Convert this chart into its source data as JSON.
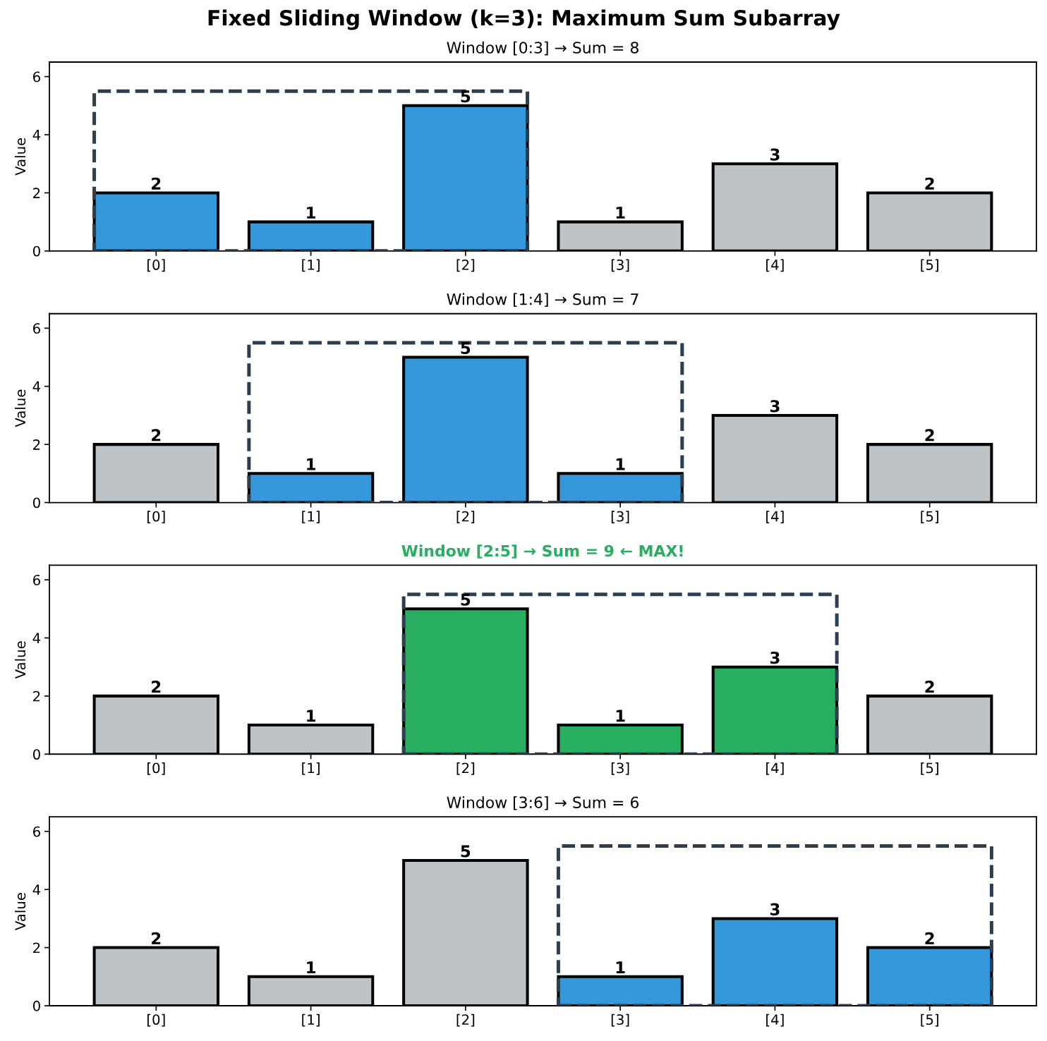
{
  "chart_data": [
    {
      "type": "other",
      "title": "Fixed Sliding Window (k=3): Maximum Sum Subarray"
    },
    {
      "type": "bar",
      "title": "Window [0:3] → Sum = 8",
      "ylabel": "Value",
      "categories": [
        "[0]",
        "[1]",
        "[2]",
        "[3]",
        "[4]",
        "[5]"
      ],
      "values": [
        2,
        1,
        5,
        1,
        3,
        2
      ],
      "colors": [
        "#3498db",
        "#3498db",
        "#3498db",
        "#bdc3c7",
        "#bdc3c7",
        "#bdc3c7"
      ],
      "ylim": [
        0,
        6.5
      ],
      "yticks": [
        0,
        2,
        4,
        6
      ],
      "data_labels": true
    },
    {
      "type": "bar",
      "title": "Window [1:4] → Sum = 7",
      "ylabel": "Value",
      "categories": [
        "[0]",
        "[1]",
        "[2]",
        "[3]",
        "[4]",
        "[5]"
      ],
      "values": [
        2,
        1,
        5,
        1,
        3,
        2
      ],
      "colors": [
        "#bdc3c7",
        "#3498db",
        "#3498db",
        "#3498db",
        "#bdc3c7",
        "#bdc3c7"
      ],
      "ylim": [
        0,
        6.5
      ],
      "yticks": [
        0,
        2,
        4,
        6
      ],
      "data_labels": true
    },
    {
      "type": "bar",
      "title": "Window [2:5] → Sum = 9 ← MAX!",
      "ylabel": "Value",
      "categories": [
        "[0]",
        "[1]",
        "[2]",
        "[3]",
        "[4]",
        "[5]"
      ],
      "values": [
        2,
        1,
        5,
        1,
        3,
        2
      ],
      "colors": [
        "#bdc3c7",
        "#bdc3c7",
        "#27ae60",
        "#27ae60",
        "#27ae60",
        "#bdc3c7"
      ],
      "ylim": [
        0,
        6.5
      ],
      "yticks": [
        0,
        2,
        4,
        6
      ],
      "data_labels": true
    },
    {
      "type": "bar",
      "title": "Window [3:6] → Sum = 6",
      "ylabel": "Value",
      "categories": [
        "[0]",
        "[1]",
        "[2]",
        "[3]",
        "[4]",
        "[5]"
      ],
      "values": [
        2,
        1,
        5,
        1,
        3,
        2
      ],
      "colors": [
        "#bdc3c7",
        "#bdc3c7",
        "#bdc3c7",
        "#3498db",
        "#3498db",
        "#3498db"
      ],
      "ylim": [
        0,
        6.5
      ],
      "yticks": [
        0,
        2,
        4,
        6
      ],
      "data_labels": true
    }
  ]
}
